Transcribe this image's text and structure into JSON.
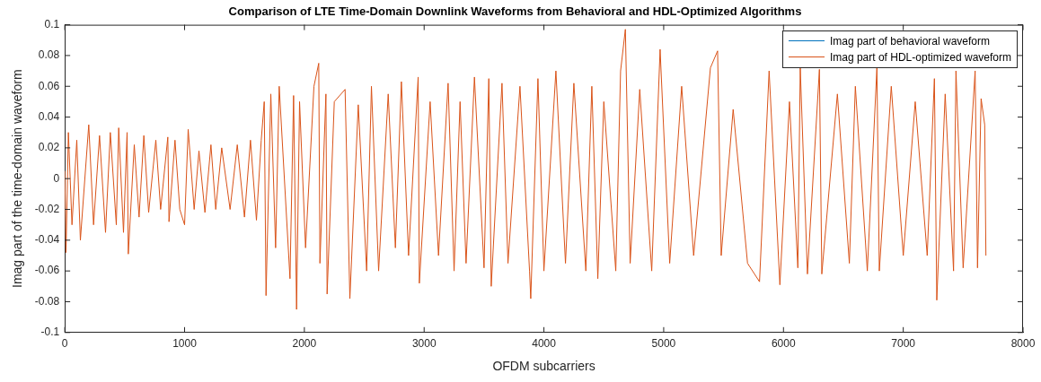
{
  "chart_data": {
    "type": "line",
    "title": "Comparison of LTE Time-Domain Downlink Waveforms from Behavioral and HDL-Optimized Algorithms",
    "xlabel": "OFDM subcarriers",
    "ylabel": "Imag part of the time-domain waveform",
    "x": [
      0,
      10,
      30,
      60,
      100,
      130,
      200,
      240,
      290,
      340,
      380,
      430,
      450,
      490,
      520,
      530,
      580,
      620,
      660,
      700,
      760,
      800,
      860,
      870,
      920,
      960,
      1000,
      1030,
      1080,
      1120,
      1170,
      1220,
      1260,
      1310,
      1380,
      1440,
      1500,
      1550,
      1600,
      1640,
      1665,
      1680,
      1720,
      1760,
      1790,
      1880,
      1910,
      1935,
      1960,
      2010,
      2080,
      2120,
      2130,
      2180,
      2190,
      2250,
      2340,
      2380,
      2450,
      2520,
      2560,
      2620,
      2700,
      2760,
      2810,
      2870,
      2950,
      2960,
      3050,
      3120,
      3200,
      3250,
      3300,
      3350,
      3420,
      3500,
      3540,
      3560,
      3650,
      3700,
      3800,
      3880,
      3890,
      3950,
      4000,
      4100,
      4180,
      4250,
      4350,
      4400,
      4450,
      4500,
      4600,
      4640,
      4680,
      4720,
      4800,
      4900,
      4970,
      5050,
      5150,
      5250,
      5390,
      5450,
      5480,
      5580,
      5700,
      5800,
      5880,
      5970,
      6050,
      6120,
      6140,
      6200,
      6300,
      6320,
      6450,
      6550,
      6600,
      6700,
      6780,
      6800,
      6900,
      7000,
      7100,
      7200,
      7260,
      7280,
      7350,
      7420,
      7440,
      7500,
      7600,
      7620,
      7650,
      7680,
      7690
    ],
    "series": [
      {
        "name": "Imag part of behavioral waveform",
        "color": "#0072bd",
        "values": [
          null,
          null,
          null,
          null,
          null,
          null,
          null,
          null,
          null,
          null,
          null,
          null,
          null,
          null,
          null,
          null,
          null,
          null,
          null,
          null,
          null,
          null,
          null,
          null,
          null,
          null,
          null,
          null,
          null,
          null,
          null,
          null,
          null,
          null,
          null,
          null,
          null,
          null,
          null,
          null,
          null,
          null,
          null,
          null,
          null,
          null,
          null,
          null,
          null,
          null,
          null,
          null,
          null,
          null,
          null,
          null,
          null,
          null,
          null,
          null,
          null,
          null,
          null,
          null,
          null,
          null,
          null,
          null,
          null,
          null,
          null,
          null,
          null,
          null,
          null,
          null,
          null,
          null,
          null,
          null,
          null,
          null,
          null,
          null,
          null,
          null,
          null,
          null,
          null,
          null,
          null,
          null,
          null,
          null,
          null,
          null,
          null,
          null,
          null,
          null,
          null,
          null,
          null,
          null,
          null,
          null,
          null,
          null,
          null,
          null,
          null,
          null,
          null,
          null,
          null,
          null,
          null,
          null,
          null,
          null,
          null,
          null,
          null,
          null,
          null,
          null,
          null,
          null,
          null,
          null,
          null,
          null,
          null,
          null,
          null,
          null,
          null
        ]
      },
      {
        "name": "Imag part of HDL-optimized waveform",
        "color": "#d95319",
        "values": [
          0.005,
          -0.048,
          0.03,
          -0.03,
          0.025,
          -0.04,
          0.035,
          -0.03,
          0.028,
          -0.035,
          0.03,
          -0.03,
          0.033,
          -0.035,
          0.03,
          -0.049,
          0.022,
          -0.025,
          0.028,
          -0.022,
          0.025,
          -0.02,
          0.027,
          -0.028,
          0.025,
          -0.02,
          -0.03,
          0.032,
          -0.02,
          0.018,
          -0.022,
          0.022,
          -0.02,
          0.02,
          -0.02,
          0.022,
          -0.025,
          0.025,
          -0.027,
          0.025,
          0.05,
          -0.076,
          0.055,
          -0.045,
          0.06,
          -0.065,
          0.054,
          -0.085,
          0.05,
          -0.045,
          0.06,
          0.075,
          -0.055,
          0.055,
          -0.075,
          0.05,
          0.058,
          -0.078,
          0.048,
          -0.06,
          0.06,
          -0.06,
          0.055,
          -0.045,
          0.063,
          -0.05,
          0.066,
          -0.068,
          0.05,
          -0.05,
          0.062,
          -0.06,
          0.05,
          -0.055,
          0.066,
          -0.058,
          0.065,
          -0.07,
          0.062,
          -0.055,
          0.06,
          -0.06,
          -0.078,
          0.065,
          -0.06,
          0.07,
          -0.055,
          0.062,
          -0.06,
          0.06,
          -0.065,
          0.05,
          -0.06,
          0.07,
          0.097,
          -0.055,
          0.058,
          -0.06,
          0.084,
          -0.055,
          0.06,
          -0.05,
          0.072,
          0.083,
          -0.05,
          0.045,
          -0.055,
          -0.067,
          0.07,
          -0.069,
          0.05,
          -0.058,
          0.072,
          -0.062,
          0.071,
          -0.062,
          0.055,
          -0.055,
          0.06,
          -0.06,
          0.072,
          -0.06,
          0.06,
          -0.05,
          0.05,
          -0.05,
          0.065,
          -0.079,
          0.055,
          -0.06,
          0.07,
          -0.058,
          0.07,
          -0.058,
          0.052,
          0.035,
          -0.05
        ]
      }
    ],
    "xlim": [
      0,
      8000
    ],
    "xticks": [
      0,
      1000,
      2000,
      3000,
      4000,
      5000,
      6000,
      7000,
      8000
    ],
    "ylim": [
      -0.1,
      0.1
    ],
    "yticks": [
      -0.1,
      -0.08,
      -0.06,
      -0.04,
      -0.02,
      0,
      0.02,
      0.04,
      0.06,
      0.08,
      0.1
    ],
    "grid": false,
    "legend": "top right",
    "marker": "none",
    "line_style": "solid"
  }
}
